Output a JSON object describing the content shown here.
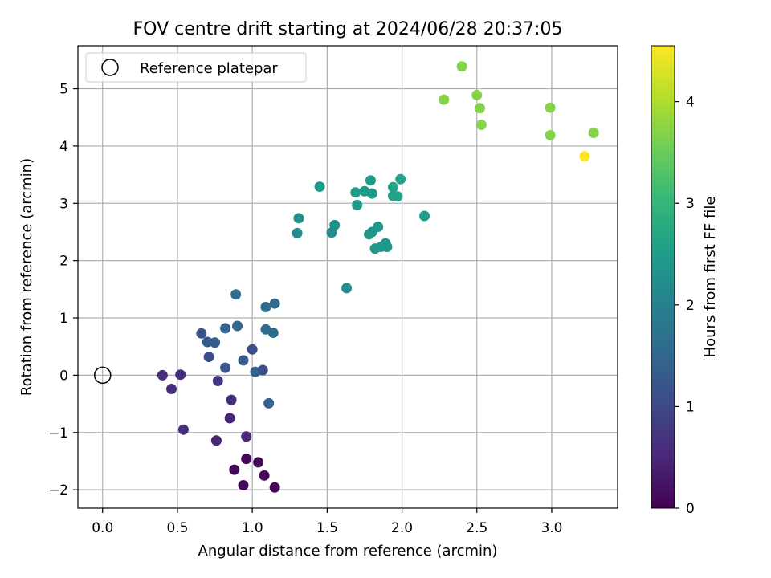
{
  "chart_data": {
    "type": "scatter",
    "title": "FOV centre drift starting at 2024/06/28 20:37:05",
    "xlabel": "Angular distance from reference (arcmin)",
    "ylabel": "Rotation from reference (arcmin)",
    "xlim": [
      -0.165,
      3.44
    ],
    "ylim": [
      -2.32,
      5.75
    ],
    "xticks": [
      0.0,
      0.5,
      1.0,
      1.5,
      2.0,
      2.5,
      3.0
    ],
    "xtick_labels": [
      "0.0",
      "0.5",
      "1.0",
      "1.5",
      "2.0",
      "2.5",
      "3.0"
    ],
    "yticks": [
      -2,
      -1,
      0,
      1,
      2,
      3,
      4,
      5
    ],
    "ytick_labels": [
      "−2",
      "−1",
      "0",
      "1",
      "2",
      "3",
      "4",
      "5"
    ],
    "grid": true,
    "legend": {
      "position": "top-left",
      "entries": [
        "Reference platepar"
      ]
    },
    "reference_point": {
      "x": 0.0,
      "y": 0.0
    },
    "colorbar": {
      "label": "Hours from first FF file",
      "range": [
        0,
        4.55
      ],
      "ticks": [
        0,
        1,
        2,
        3,
        4
      ],
      "tick_labels": [
        "0",
        "1",
        "2",
        "3",
        "4"
      ],
      "colormap": [
        "#440154",
        "#482878",
        "#3e4989",
        "#31688e",
        "#26828e",
        "#1f9e89",
        "#35b779",
        "#6ece58",
        "#b5de2b",
        "#fde725"
      ]
    },
    "points": [
      {
        "x": 0.4,
        "y": 0.0,
        "c": 0.6
      },
      {
        "x": 0.46,
        "y": -0.24,
        "c": 0.6
      },
      {
        "x": 0.52,
        "y": 0.01,
        "c": 0.6
      },
      {
        "x": 0.54,
        "y": -0.95,
        "c": 0.6
      },
      {
        "x": 0.76,
        "y": -1.14,
        "c": 0.45
      },
      {
        "x": 0.85,
        "y": -0.75,
        "c": 0.45
      },
      {
        "x": 0.86,
        "y": -0.43,
        "c": 0.6
      },
      {
        "x": 0.77,
        "y": -0.1,
        "c": 0.7
      },
      {
        "x": 0.96,
        "y": -1.07,
        "c": 0.5
      },
      {
        "x": 0.88,
        "y": -1.65,
        "c": 0.1
      },
      {
        "x": 0.94,
        "y": -1.92,
        "c": 0.1
      },
      {
        "x": 0.96,
        "y": -1.46,
        "c": 0.1
      },
      {
        "x": 1.04,
        "y": -1.52,
        "c": 0.1
      },
      {
        "x": 1.08,
        "y": -1.75,
        "c": 0.1
      },
      {
        "x": 1.15,
        "y": -1.96,
        "c": 0.1
      },
      {
        "x": 0.82,
        "y": 0.13,
        "c": 1.2
      },
      {
        "x": 0.71,
        "y": 0.32,
        "c": 1.1
      },
      {
        "x": 0.66,
        "y": 0.73,
        "c": 1.2
      },
      {
        "x": 0.7,
        "y": 0.58,
        "c": 1.3
      },
      {
        "x": 0.75,
        "y": 0.57,
        "c": 1.3
      },
      {
        "x": 0.82,
        "y": 0.82,
        "c": 1.4
      },
      {
        "x": 0.9,
        "y": 0.86,
        "c": 1.5
      },
      {
        "x": 0.89,
        "y": 1.41,
        "c": 1.6
      },
      {
        "x": 0.94,
        "y": 0.26,
        "c": 1.3
      },
      {
        "x": 1.0,
        "y": 0.45,
        "c": 1.1
      },
      {
        "x": 1.02,
        "y": 0.06,
        "c": 1.4
      },
      {
        "x": 1.07,
        "y": 0.09,
        "c": 1.1
      },
      {
        "x": 1.09,
        "y": 1.19,
        "c": 1.6
      },
      {
        "x": 1.09,
        "y": 0.8,
        "c": 1.6
      },
      {
        "x": 1.11,
        "y": -0.49,
        "c": 1.4
      },
      {
        "x": 1.14,
        "y": 0.74,
        "c": 1.6
      },
      {
        "x": 1.15,
        "y": 1.25,
        "c": 1.6
      },
      {
        "x": 1.3,
        "y": 2.48,
        "c": 2.2
      },
      {
        "x": 1.31,
        "y": 2.74,
        "c": 2.3
      },
      {
        "x": 1.45,
        "y": 3.29,
        "c": 2.5
      },
      {
        "x": 1.53,
        "y": 2.49,
        "c": 2.2
      },
      {
        "x": 1.55,
        "y": 2.62,
        "c": 2.3
      },
      {
        "x": 1.63,
        "y": 1.52,
        "c": 2.2
      },
      {
        "x": 1.69,
        "y": 3.19,
        "c": 2.5
      },
      {
        "x": 1.7,
        "y": 2.97,
        "c": 2.5
      },
      {
        "x": 1.75,
        "y": 3.21,
        "c": 2.5
      },
      {
        "x": 1.78,
        "y": 2.46,
        "c": 2.4
      },
      {
        "x": 1.79,
        "y": 3.4,
        "c": 2.5
      },
      {
        "x": 1.8,
        "y": 3.17,
        "c": 2.5
      },
      {
        "x": 1.8,
        "y": 2.5,
        "c": 2.4
      },
      {
        "x": 1.82,
        "y": 2.21,
        "c": 2.4
      },
      {
        "x": 1.84,
        "y": 2.59,
        "c": 2.4
      },
      {
        "x": 1.86,
        "y": 2.24,
        "c": 2.4
      },
      {
        "x": 1.89,
        "y": 2.3,
        "c": 2.4
      },
      {
        "x": 1.9,
        "y": 2.24,
        "c": 2.4
      },
      {
        "x": 1.94,
        "y": 3.28,
        "c": 2.6
      },
      {
        "x": 1.94,
        "y": 3.13,
        "c": 2.6
      },
      {
        "x": 1.97,
        "y": 3.12,
        "c": 2.6
      },
      {
        "x": 1.99,
        "y": 3.42,
        "c": 2.6
      },
      {
        "x": 2.15,
        "y": 2.78,
        "c": 2.5
      },
      {
        "x": 2.28,
        "y": 4.81,
        "c": 3.7
      },
      {
        "x": 2.4,
        "y": 5.39,
        "c": 3.7
      },
      {
        "x": 2.5,
        "y": 4.89,
        "c": 3.7
      },
      {
        "x": 2.52,
        "y": 4.66,
        "c": 3.7
      },
      {
        "x": 2.53,
        "y": 4.37,
        "c": 3.7
      },
      {
        "x": 2.99,
        "y": 4.67,
        "c": 3.7
      },
      {
        "x": 2.99,
        "y": 4.19,
        "c": 3.7
      },
      {
        "x": 3.22,
        "y": 3.82,
        "c": 4.55
      },
      {
        "x": 3.28,
        "y": 4.23,
        "c": 3.7
      }
    ]
  }
}
